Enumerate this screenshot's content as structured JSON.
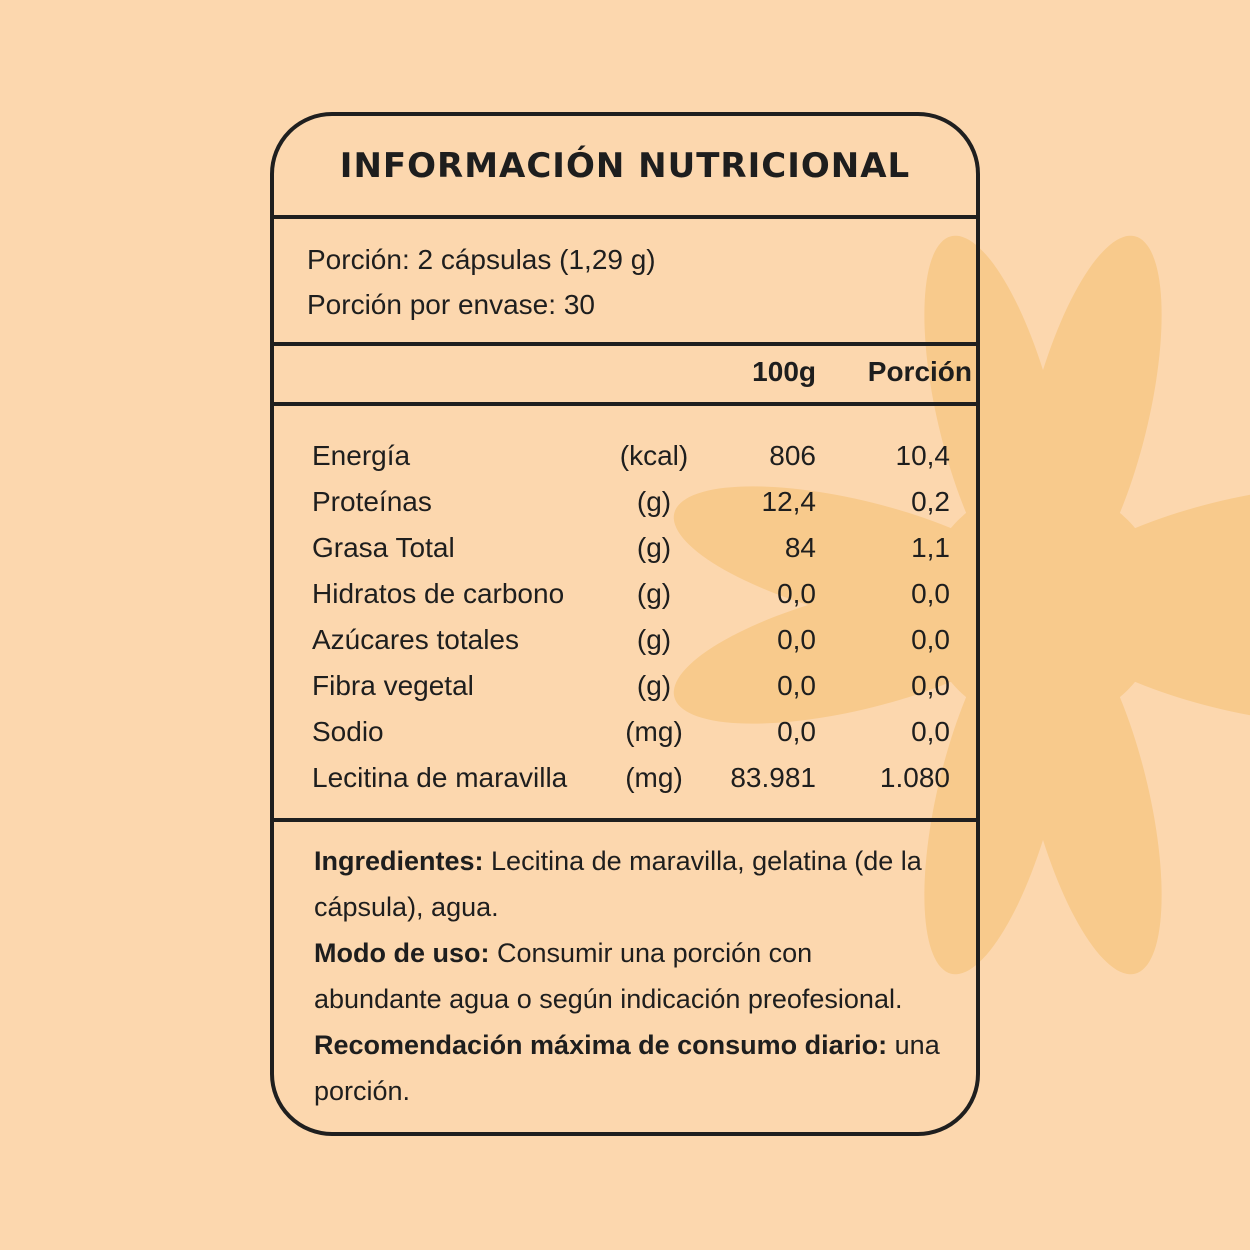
{
  "colors": {
    "background": "#FCD7AE",
    "flower": "#F8CA8C",
    "ink": "#1F1F1F"
  },
  "title": "INFORMACIÓN NUTRICIONAL",
  "serving": {
    "size": "Porción: 2 cápsulas (1,29 g)",
    "per_container": "Porción por envase: 30"
  },
  "columns": {
    "per100": "100g",
    "portion": "Porción"
  },
  "rows": [
    {
      "name": "Energía",
      "unit": "(kcal)",
      "per100": "806",
      "portion": "10,4"
    },
    {
      "name": "Proteínas",
      "unit": "(g)",
      "per100": "12,4",
      "portion": "0,2"
    },
    {
      "name": "Grasa Total",
      "unit": "(g)",
      "per100": "84",
      "portion": "1,1"
    },
    {
      "name": "Hidratos de carbono",
      "unit": "(g)",
      "per100": "0,0",
      "portion": "0,0"
    },
    {
      "name": "Azúcares totales",
      "unit": "(g)",
      "per100": "0,0",
      "portion": "0,0"
    },
    {
      "name": "Fibra vegetal",
      "unit": "(g)",
      "per100": "0,0",
      "portion": "0,0"
    },
    {
      "name": "Sodio",
      "unit": "(mg)",
      "per100": "0,0",
      "portion": "0,0"
    },
    {
      "name": "Lecitina de maravilla",
      "unit": "(mg)",
      "per100": "83.981",
      "portion": "1.080"
    }
  ],
  "info": {
    "ingredients_label": "Ingredientes:",
    "ingredients": " Lecitina de maravilla, gelatina (de la cápsula), agua.",
    "usage_label": "Modo de uso:",
    "usage": " Consumir una porción con abundante agua o según indicación preofesional.",
    "max_label": "Recomendación máxima de consumo diario:",
    "max": " una porción."
  }
}
